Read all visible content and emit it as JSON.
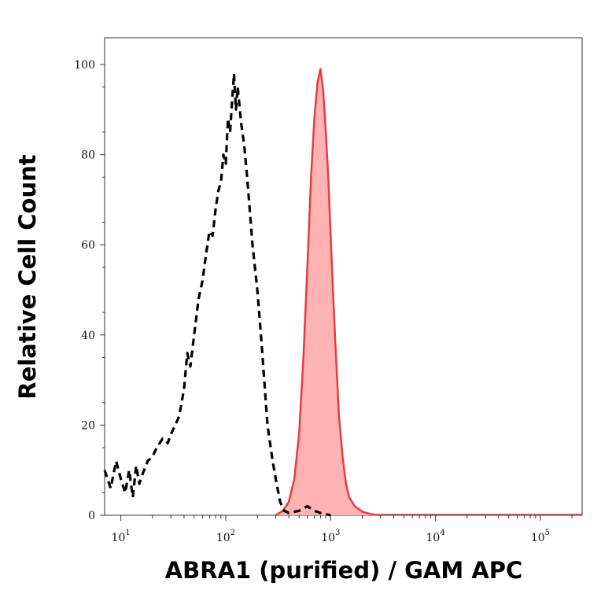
{
  "chart_data": {
    "type": "area",
    "title": "",
    "xlabel": "ABRA1 (purified) / GAM APC",
    "ylabel": "Relative Cell Count",
    "x_scale": "log",
    "xlim": [
      7,
      250000
    ],
    "ylim": [
      0,
      100
    ],
    "y_ticks": [
      0,
      20,
      40,
      60,
      80,
      100
    ],
    "x_ticks": [
      {
        "value": 10,
        "base": "10",
        "exp": "1"
      },
      {
        "value": 100,
        "base": "10",
        "exp": "2"
      },
      {
        "value": 1000,
        "base": "10",
        "exp": "3"
      },
      {
        "value": 10000,
        "base": "10",
        "exp": "4"
      },
      {
        "value": 100000,
        "base": "10",
        "exp": "5"
      }
    ],
    "grid": false,
    "legend": "none",
    "series": [
      {
        "style": "dashed",
        "color": "#000000",
        "points": [
          [
            7,
            10
          ],
          [
            8,
            6
          ],
          [
            9,
            12
          ],
          [
            10,
            8
          ],
          [
            11,
            5
          ],
          [
            12,
            10
          ],
          [
            13,
            4
          ],
          [
            14,
            11
          ],
          [
            15,
            7
          ],
          [
            16,
            9
          ],
          [
            18,
            12
          ],
          [
            20,
            13
          ],
          [
            22,
            15
          ],
          [
            25,
            17
          ],
          [
            28,
            16
          ],
          [
            30,
            18
          ],
          [
            33,
            20
          ],
          [
            36,
            22
          ],
          [
            40,
            28
          ],
          [
            43,
            36
          ],
          [
            46,
            33
          ],
          [
            50,
            40
          ],
          [
            55,
            48
          ],
          [
            60,
            52
          ],
          [
            65,
            58
          ],
          [
            70,
            63
          ],
          [
            75,
            62
          ],
          [
            80,
            68
          ],
          [
            85,
            72
          ],
          [
            90,
            74
          ],
          [
            95,
            80
          ],
          [
            100,
            78
          ],
          [
            105,
            88
          ],
          [
            110,
            85
          ],
          [
            115,
            92
          ],
          [
            120,
            98
          ],
          [
            125,
            90
          ],
          [
            130,
            95
          ],
          [
            140,
            87
          ],
          [
            150,
            82
          ],
          [
            160,
            75
          ],
          [
            180,
            60
          ],
          [
            200,
            50
          ],
          [
            220,
            38
          ],
          [
            250,
            20
          ],
          [
            280,
            12
          ],
          [
            300,
            8
          ],
          [
            330,
            3
          ],
          [
            360,
            1
          ],
          [
            400,
            0.5
          ],
          [
            500,
            1
          ],
          [
            600,
            2
          ],
          [
            700,
            1
          ],
          [
            800,
            0.5
          ],
          [
            1000,
            0
          ]
        ]
      },
      {
        "style": "filled",
        "color": "#e83b41",
        "fill": "#ffb3b3",
        "points": [
          [
            300,
            0
          ],
          [
            350,
            1
          ],
          [
            400,
            3
          ],
          [
            450,
            8
          ],
          [
            500,
            18
          ],
          [
            550,
            35
          ],
          [
            600,
            55
          ],
          [
            650,
            75
          ],
          [
            700,
            88
          ],
          [
            750,
            96
          ],
          [
            800,
            99
          ],
          [
            850,
            94
          ],
          [
            900,
            85
          ],
          [
            950,
            75
          ],
          [
            1000,
            62
          ],
          [
            1100,
            40
          ],
          [
            1200,
            22
          ],
          [
            1300,
            13
          ],
          [
            1400,
            7
          ],
          [
            1500,
            4
          ],
          [
            1700,
            2
          ],
          [
            2000,
            0.8
          ],
          [
            2500,
            0.2
          ],
          [
            3000,
            0
          ]
        ]
      }
    ]
  }
}
